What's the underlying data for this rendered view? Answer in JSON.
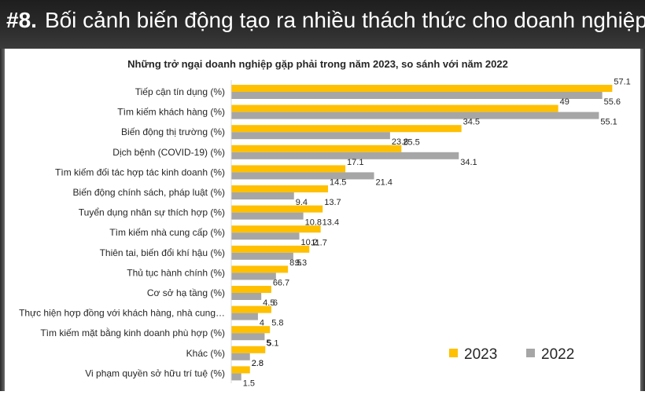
{
  "header": {
    "number": "#8.",
    "title": "Bối cảnh biến động tạo ra nhiều thách thức cho doanh nghiệp"
  },
  "colors": {
    "series_2023": "#FFC000",
    "series_2022": "#A6A6A6"
  },
  "chart_data": {
    "type": "bar",
    "orientation": "horizontal",
    "title": "Những trở ngại doanh nghiệp gặp phải trong năm 2023, so sánh với năm 2022",
    "categories": [
      "Tiếp cận tín dụng (%)",
      "Tìm kiếm khách hàng (%)",
      "Biến động thị trường (%)",
      "Dịch bệnh (COVID-19) (%)",
      "Tìm kiếm đối tác hợp tác kinh doanh (%)",
      "Biến động chính sách, pháp luật (%)",
      "Tuyển dụng nhân sự thích hợp (%)",
      "Tìm kiếm nhà cung cấp (%)",
      "Thiên tai, biến đổi khí hậu (%)",
      "Thủ tục hành chính (%)",
      "Cơ sở hạ tầng (%)",
      "Thực hiện hợp đồng với khách hàng, nhà cung…",
      "Tìm kiếm mặt bằng kinh doanh phù hợp (%)",
      "Khác (%)",
      "Vi phạm quyền sở hữu trí tuệ (%)"
    ],
    "series": [
      {
        "name": "2023",
        "values": [
          57.1,
          49,
          34.5,
          25.5,
          17.1,
          14.5,
          13.7,
          13.4,
          11.7,
          8.5,
          6,
          6,
          5.8,
          5.1,
          2.8
        ]
      },
      {
        "name": "2022",
        "values": [
          55.6,
          55.1,
          23.8,
          34.1,
          21.4,
          9.4,
          10.8,
          10.2,
          9.3,
          6.7,
          4.5,
          4,
          5,
          2.8,
          1.5
        ]
      }
    ],
    "xlim": [
      0,
      60
    ],
    "grid": false,
    "legend_position": "bottom-right"
  }
}
